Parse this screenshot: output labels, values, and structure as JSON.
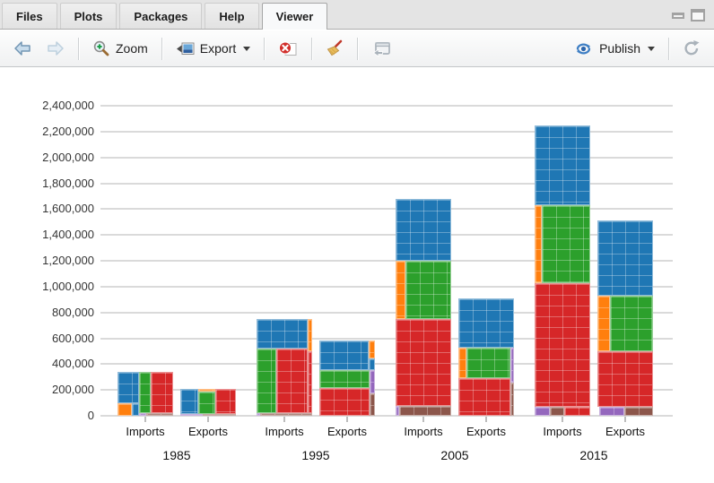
{
  "window": {
    "tabs": [
      "Files",
      "Plots",
      "Packages",
      "Help",
      "Viewer"
    ],
    "active_tab": "Viewer",
    "controls": [
      "minimize-icon",
      "maximize-icon"
    ]
  },
  "toolbar": {
    "zoom_label": "Zoom",
    "export_label": "Export",
    "publish_label": "Publish",
    "icons": [
      "back-icon",
      "forward-icon",
      "zoom-icon",
      "export-icon",
      "remove-plot-icon",
      "clear-broom-icon",
      "open-in-new-window-icon",
      "publish-icon",
      "refresh-icon"
    ],
    "publish_accent": "#3f7fc4"
  },
  "chart_data": {
    "type": "bar",
    "subtype": "treemap-stacked-bars",
    "title": "",
    "xlabel": "",
    "ylabel": "",
    "ylim": [
      0,
      2400000
    ],
    "grid": true,
    "legend": false,
    "gridline_color": "#dadada",
    "background": "#ffffff",
    "y_tick_values": [
      0,
      200000,
      400000,
      600000,
      800000,
      1000000,
      1200000,
      1400000,
      1600000,
      1800000,
      2000000,
      2200000,
      2400000
    ],
    "y_tick_labels": [
      "0",
      "200,000",
      "400,000",
      "600,000",
      "800,000",
      "1,000,000",
      "1,200,000",
      "1,400,000",
      "1,600,000",
      "1,800,000",
      "2,000,000",
      "2,200,000",
      "2,400,000"
    ],
    "x_groups": [
      "1985",
      "1995",
      "2005",
      "2015"
    ],
    "x_categories": [
      "Imports",
      "Exports"
    ],
    "palette": {
      "blue": "#1f77b4",
      "orange": "#ff7f0e",
      "green": "#2ca02c",
      "red": "#d62728",
      "purple": "#9467bd",
      "brown": "#8c564b"
    },
    "bars": [
      {
        "group": "1985",
        "category": "Imports",
        "total": 340000,
        "blocks": [
          {
            "c": "blue",
            "x": 0,
            "y": 0,
            "w": 0.38,
            "h": 0.72
          },
          {
            "c": "orange",
            "x": 0,
            "y": 0.72,
            "w": 0.26,
            "h": 0.28
          },
          {
            "c": "blue",
            "x": 0.26,
            "y": 0.72,
            "w": 0.12,
            "h": 0.28
          },
          {
            "c": "green",
            "x": 0.38,
            "y": 0,
            "w": 0.22,
            "h": 0.94
          },
          {
            "c": "red",
            "x": 0.6,
            "y": 0,
            "w": 0.4,
            "h": 0.94
          },
          {
            "c": "purple",
            "x": 0.38,
            "y": 0.94,
            "w": 0.13,
            "h": 0.06
          },
          {
            "c": "brown",
            "x": 0.51,
            "y": 0.94,
            "w": 0.49,
            "h": 0.06
          }
        ]
      },
      {
        "group": "1985",
        "category": "Exports",
        "total": 210000,
        "blocks": [
          {
            "c": "blue",
            "x": 0,
            "y": 0,
            "w": 0.32,
            "h": 0.93
          },
          {
            "c": "orange",
            "x": 0.32,
            "y": 0,
            "w": 0.31,
            "h": 0.12
          },
          {
            "c": "green",
            "x": 0.32,
            "y": 0.12,
            "w": 0.31,
            "h": 0.81
          },
          {
            "c": "red",
            "x": 0.63,
            "y": 0,
            "w": 0.37,
            "h": 0.93
          },
          {
            "c": "purple",
            "x": 0,
            "y": 0.93,
            "w": 0.4,
            "h": 0.07
          },
          {
            "c": "brown",
            "x": 0.4,
            "y": 0.93,
            "w": 0.6,
            "h": 0.07
          }
        ]
      },
      {
        "group": "1995",
        "category": "Imports",
        "total": 750000,
        "blocks": [
          {
            "c": "blue",
            "x": 0,
            "y": 0,
            "w": 0.92,
            "h": 0.31
          },
          {
            "c": "orange",
            "x": 0.92,
            "y": 0,
            "w": 0.08,
            "h": 0.33
          },
          {
            "c": "green",
            "x": 0,
            "y": 0.31,
            "w": 0.35,
            "h": 0.66
          },
          {
            "c": "red",
            "x": 0.35,
            "y": 0.31,
            "w": 0.57,
            "h": 0.66
          },
          {
            "c": "red",
            "x": 0.92,
            "y": 0.33,
            "w": 0.08,
            "h": 0.64
          },
          {
            "c": "purple",
            "x": 0,
            "y": 0.97,
            "w": 0.07,
            "h": 0.03
          },
          {
            "c": "brown",
            "x": 0.07,
            "y": 0.97,
            "w": 0.93,
            "h": 0.03
          }
        ]
      },
      {
        "group": "1995",
        "category": "Exports",
        "total": 580000,
        "blocks": [
          {
            "c": "blue",
            "x": 0,
            "y": 0,
            "w": 0.88,
            "h": 0.385
          },
          {
            "c": "orange",
            "x": 0.88,
            "y": 0,
            "w": 0.12,
            "h": 0.24
          },
          {
            "c": "blue",
            "x": 0.88,
            "y": 0.24,
            "w": 0.12,
            "h": 0.145
          },
          {
            "c": "green",
            "x": 0,
            "y": 0.385,
            "w": 0.9,
            "h": 0.245
          },
          {
            "c": "red",
            "x": 0,
            "y": 0.63,
            "w": 0.9,
            "h": 0.37
          },
          {
            "c": "purple",
            "x": 0.9,
            "y": 0.385,
            "w": 0.1,
            "h": 0.32
          },
          {
            "c": "brown",
            "x": 0.9,
            "y": 0.705,
            "w": 0.1,
            "h": 0.295
          }
        ]
      },
      {
        "group": "2005",
        "category": "Imports",
        "total": 1680000,
        "blocks": [
          {
            "c": "blue",
            "x": 0,
            "y": 0,
            "w": 1,
            "h": 0.285
          },
          {
            "c": "orange",
            "x": 0,
            "y": 0.285,
            "w": 0.17,
            "h": 0.27
          },
          {
            "c": "green",
            "x": 0.17,
            "y": 0.285,
            "w": 0.83,
            "h": 0.27
          },
          {
            "c": "red",
            "x": 0,
            "y": 0.555,
            "w": 1,
            "h": 0.4
          },
          {
            "c": "purple",
            "x": 0,
            "y": 0.955,
            "w": 0.07,
            "h": 0.045
          },
          {
            "c": "brown",
            "x": 0.07,
            "y": 0.955,
            "w": 0.93,
            "h": 0.045
          }
        ]
      },
      {
        "group": "2005",
        "category": "Exports",
        "total": 910000,
        "blocks": [
          {
            "c": "blue",
            "x": 0,
            "y": 0,
            "w": 1,
            "h": 0.42
          },
          {
            "c": "orange",
            "x": 0,
            "y": 0.42,
            "w": 0.15,
            "h": 0.26
          },
          {
            "c": "green",
            "x": 0.15,
            "y": 0.42,
            "w": 0.78,
            "h": 0.26
          },
          {
            "c": "purple",
            "x": 0.93,
            "y": 0.42,
            "w": 0.07,
            "h": 0.3
          },
          {
            "c": "red",
            "x": 0,
            "y": 0.68,
            "w": 0.93,
            "h": 0.32
          },
          {
            "c": "brown",
            "x": 0.93,
            "y": 0.72,
            "w": 0.07,
            "h": 0.28
          }
        ]
      },
      {
        "group": "2015",
        "category": "Imports",
        "total": 2250000,
        "blocks": [
          {
            "c": "blue",
            "x": 0,
            "y": 0,
            "w": 1,
            "h": 0.275
          },
          {
            "c": "orange",
            "x": 0,
            "y": 0.275,
            "w": 0.13,
            "h": 0.27
          },
          {
            "c": "green",
            "x": 0.13,
            "y": 0.275,
            "w": 0.87,
            "h": 0.27
          },
          {
            "c": "red",
            "x": 0,
            "y": 0.545,
            "w": 1,
            "h": 0.425
          },
          {
            "c": "purple",
            "x": 0,
            "y": 0.97,
            "w": 0.27,
            "h": 0.03
          },
          {
            "c": "brown",
            "x": 0.27,
            "y": 0.97,
            "w": 0.26,
            "h": 0.03
          },
          {
            "c": "red",
            "x": 0.53,
            "y": 0.97,
            "w": 0.47,
            "h": 0.03
          }
        ]
      },
      {
        "group": "2015",
        "category": "Exports",
        "total": 1510000,
        "blocks": [
          {
            "c": "blue",
            "x": 0,
            "y": 0,
            "w": 1,
            "h": 0.385
          },
          {
            "c": "orange",
            "x": 0,
            "y": 0.385,
            "w": 0.22,
            "h": 0.285
          },
          {
            "c": "green",
            "x": 0.22,
            "y": 0.385,
            "w": 0.78,
            "h": 0.285
          },
          {
            "c": "red",
            "x": 0,
            "y": 0.67,
            "w": 1,
            "h": 0.285
          },
          {
            "c": "purple",
            "x": 0.04,
            "y": 0.955,
            "w": 0.45,
            "h": 0.045
          },
          {
            "c": "brown",
            "x": 0.49,
            "y": 0.955,
            "w": 0.51,
            "h": 0.045
          }
        ]
      }
    ]
  }
}
